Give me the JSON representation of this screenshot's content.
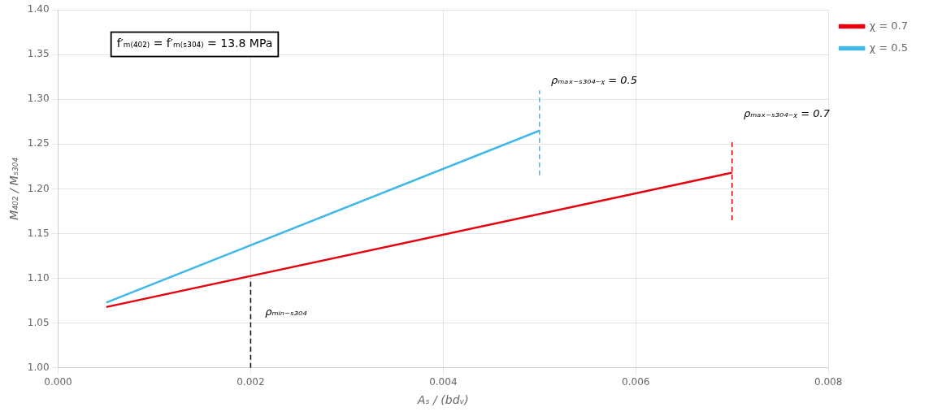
{
  "chart_data": {
    "type": "line",
    "xlabel": "Aₛ / (bdᵥ)",
    "ylabel": "M₄₀₂ / Mₛ₃₀₄",
    "xlim": [
      0.0,
      0.008
    ],
    "ylim": [
      1.0,
      1.4
    ],
    "xticks": [
      {
        "value": 0.0,
        "label": "0.000"
      },
      0.002,
      0.004,
      0.006,
      0.008
    ],
    "yticks": [
      {
        "value": 1.0,
        "label": "1.00"
      },
      1.05,
      {
        "value": 1.1,
        "label": "1.10"
      },
      1.15,
      {
        "value": 1.2,
        "label": "1.20"
      },
      1.25,
      {
        "value": 1.3,
        "label": "1.30"
      },
      1.35,
      {
        "value": 1.4,
        "label": "1.40"
      }
    ],
    "grid": true,
    "legend": "right",
    "series": [
      {
        "name": "χ = 0.7",
        "color": "#E8000E",
        "x": [
          0.0005,
          0.007
        ],
        "values": [
          1.068,
          1.218
        ]
      },
      {
        "name": "χ = 0.5",
        "color": "#41B8E8",
        "x": [
          0.0005,
          0.005
        ],
        "values": [
          1.073,
          1.265
        ]
      }
    ],
    "vlines": [
      {
        "x": 0.002,
        "y": [
          1.0,
          1.1
        ],
        "color": "#000000",
        "line_style": "dashed"
      },
      {
        "x": 0.005,
        "y": [
          1.215,
          1.31
        ],
        "color": "#41B8E8",
        "line_style": "dashed"
      },
      {
        "x": 0.007,
        "y": [
          1.165,
          1.255
        ],
        "color": "#E8000E",
        "line_style": "dashed"
      }
    ],
    "note": {
      "text": "f′ₘ₍₄₀₂₎ = f′ₘ₍ₛ₃₀₄₎ = 13.8 MPa",
      "x": 0.00055,
      "y": 1.375
    },
    "annotations": [
      {
        "text": "ρₘᵢₙ₋ₛ₃₀₄",
        "x": 0.00215,
        "y": 1.059
      },
      {
        "text": "ρₘₐₓ₋ₛ₃₀₄₋ᵪ = 0.5",
        "x": 0.00512,
        "y": 1.317
      },
      {
        "text": "ρₘₐₓ₋ₛ₃₀₄₋ᵪ = 0.7",
        "x": 0.00712,
        "y": 1.28
      }
    ]
  }
}
